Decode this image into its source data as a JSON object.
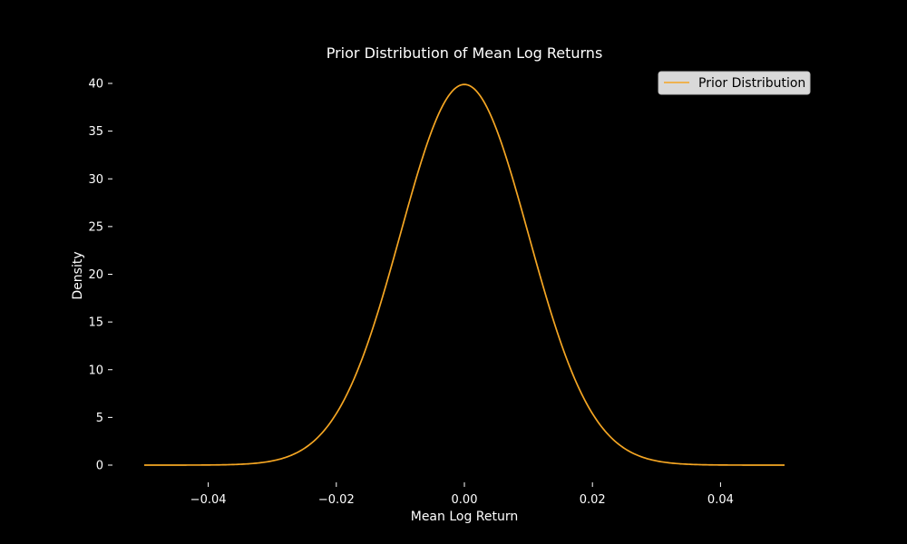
{
  "chart_data": {
    "type": "line",
    "title": "Prior Distribution of Mean Log Returns",
    "xlabel": "Mean Log Return",
    "ylabel": "Density",
    "xlim": [
      -0.05,
      0.05
    ],
    "ylim": [
      0,
      40
    ],
    "x_ticks": [
      -0.04,
      -0.02,
      0.0,
      0.02,
      0.04
    ],
    "x_tick_labels": [
      "−0.04",
      "−0.02",
      "0.00",
      "0.02",
      "0.04"
    ],
    "y_ticks": [
      0,
      5,
      10,
      15,
      20,
      25,
      30,
      35,
      40
    ],
    "y_tick_labels": [
      "0",
      "5",
      "10",
      "15",
      "20",
      "25",
      "30",
      "35",
      "40"
    ],
    "grid": false,
    "legend_position": "top-right",
    "series": [
      {
        "name": "Prior Distribution",
        "color": "#f5a623",
        "distribution": "normal",
        "mean": 0.0,
        "std": 0.01,
        "x_start": -0.05,
        "x_end": 0.05,
        "peak_value": 39.89
      }
    ]
  },
  "colors": {
    "background": "#000000",
    "foreground": "#ffffff",
    "legend_background": "#d9d9d9"
  }
}
